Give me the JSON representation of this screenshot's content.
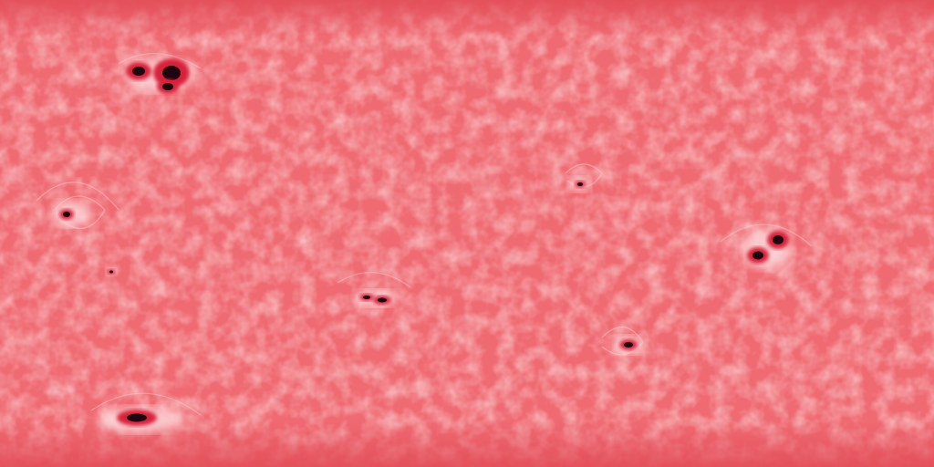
{
  "image": {
    "kind": "equirectangular solar surface map",
    "palette": {
      "background": "#f06a72",
      "background_light": "#f7a3a8",
      "background_dark": "#e24c57",
      "limb_band": "#e8525d",
      "spot_penumbra": "#d8203a",
      "spot_umbra": "#1e0510",
      "spot_halo": "#fde4e6"
    }
  },
  "features": {
    "spot_count": 8
  }
}
